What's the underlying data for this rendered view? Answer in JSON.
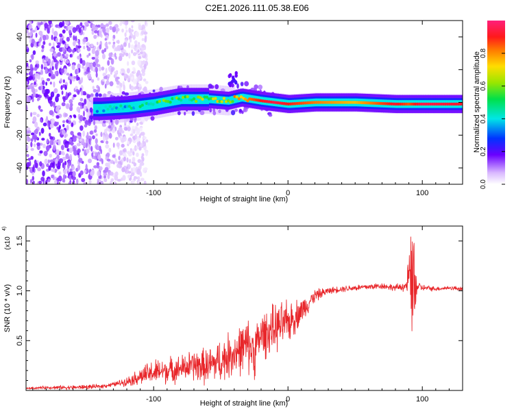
{
  "title": "C2E1.2026.111.05.38.E06",
  "colors": {
    "snr_line": "#e8262a",
    "axis": "#000000",
    "background": "#ffffff"
  },
  "chart_data": [
    {
      "type": "heatmap",
      "name": "spectrogram",
      "xlabel": "Height of straight line (km)",
      "ylabel": "Frequency (Hz)",
      "xlim": [
        -195,
        130
      ],
      "ylim": [
        -50,
        50
      ],
      "x_ticks": [
        -100,
        0,
        100
      ],
      "x_tick_labels": [
        "-100",
        "0",
        "100"
      ],
      "y_ticks": [
        -40,
        -20,
        0,
        20,
        40
      ],
      "y_tick_labels": [
        "-40",
        "-20",
        "0",
        "20",
        "40"
      ],
      "colorbar": {
        "label": "Normalized spectral amplitude",
        "range": [
          0,
          1
        ],
        "ticks": [
          0.0,
          0.2,
          0.4,
          0.6,
          0.8
        ],
        "tick_labels": [
          "0.0",
          "0.2",
          "0.4",
          "0.6",
          "0.8"
        ]
      },
      "signal_track": {
        "x": [
          -140,
          -120,
          -100,
          -80,
          -60,
          -45,
          -35,
          -20,
          -10,
          0,
          20,
          50,
          80,
          90,
          100,
          130
        ],
        "freq": [
          -4,
          -3,
          -1,
          2,
          2,
          1,
          3,
          1,
          0,
          -1,
          0,
          0,
          -1,
          -1,
          -1,
          -1
        ],
        "amplitude": [
          0.35,
          0.42,
          0.5,
          0.55,
          0.6,
          0.7,
          0.78,
          0.9,
          0.95,
          0.9,
          0.82,
          0.75,
          0.92,
          0.85,
          0.95,
          0.92
        ]
      },
      "noise_region_x": [
        -195,
        -115
      ]
    },
    {
      "type": "line",
      "name": "snr",
      "xlabel": "Height of straight line (km)",
      "ylabel": "SNR (10 * v/v)",
      "multiplier_label": "(x10",
      "multiplier_exponent": "4",
      "xlim": [
        -195,
        130
      ],
      "ylim": [
        0,
        1.65
      ],
      "x_ticks": [
        -100,
        0,
        100
      ],
      "x_tick_labels": [
        "-100",
        "0",
        "100"
      ],
      "y_ticks": [
        0.5,
        1.0,
        1.5
      ],
      "y_tick_labels": [
        "0.5",
        "1.0",
        "1.5"
      ],
      "series": [
        {
          "name": "SNR",
          "x": [
            -195,
            -180,
            -160,
            -140,
            -130,
            -120,
            -110,
            -100,
            -90,
            -80,
            -70,
            -60,
            -50,
            -40,
            -30,
            -25,
            -20,
            -10,
            0,
            10,
            20,
            30,
            40,
            50,
            60,
            70,
            80,
            88,
            92,
            94,
            96,
            100,
            110,
            120,
            130
          ],
          "y": [
            0.02,
            0.03,
            0.03,
            0.04,
            0.06,
            0.09,
            0.14,
            0.18,
            0.2,
            0.22,
            0.25,
            0.24,
            0.3,
            0.38,
            0.45,
            0.4,
            0.55,
            0.62,
            0.68,
            0.8,
            0.95,
            1.0,
            1.02,
            1.03,
            1.04,
            1.05,
            1.03,
            1.05,
            1.2,
            0.9,
            1.05,
            1.03,
            1.02,
            1.03,
            1.02
          ],
          "spread": [
            0.01,
            0.015,
            0.02,
            0.02,
            0.02,
            0.04,
            0.08,
            0.12,
            0.12,
            0.12,
            0.15,
            0.17,
            0.2,
            0.22,
            0.25,
            0.25,
            0.22,
            0.22,
            0.2,
            0.12,
            0.06,
            0.03,
            0.03,
            0.03,
            0.03,
            0.03,
            0.03,
            0.05,
            0.4,
            0.4,
            0.05,
            0.03,
            0.02,
            0.02,
            0.02
          ]
        }
      ]
    }
  ]
}
